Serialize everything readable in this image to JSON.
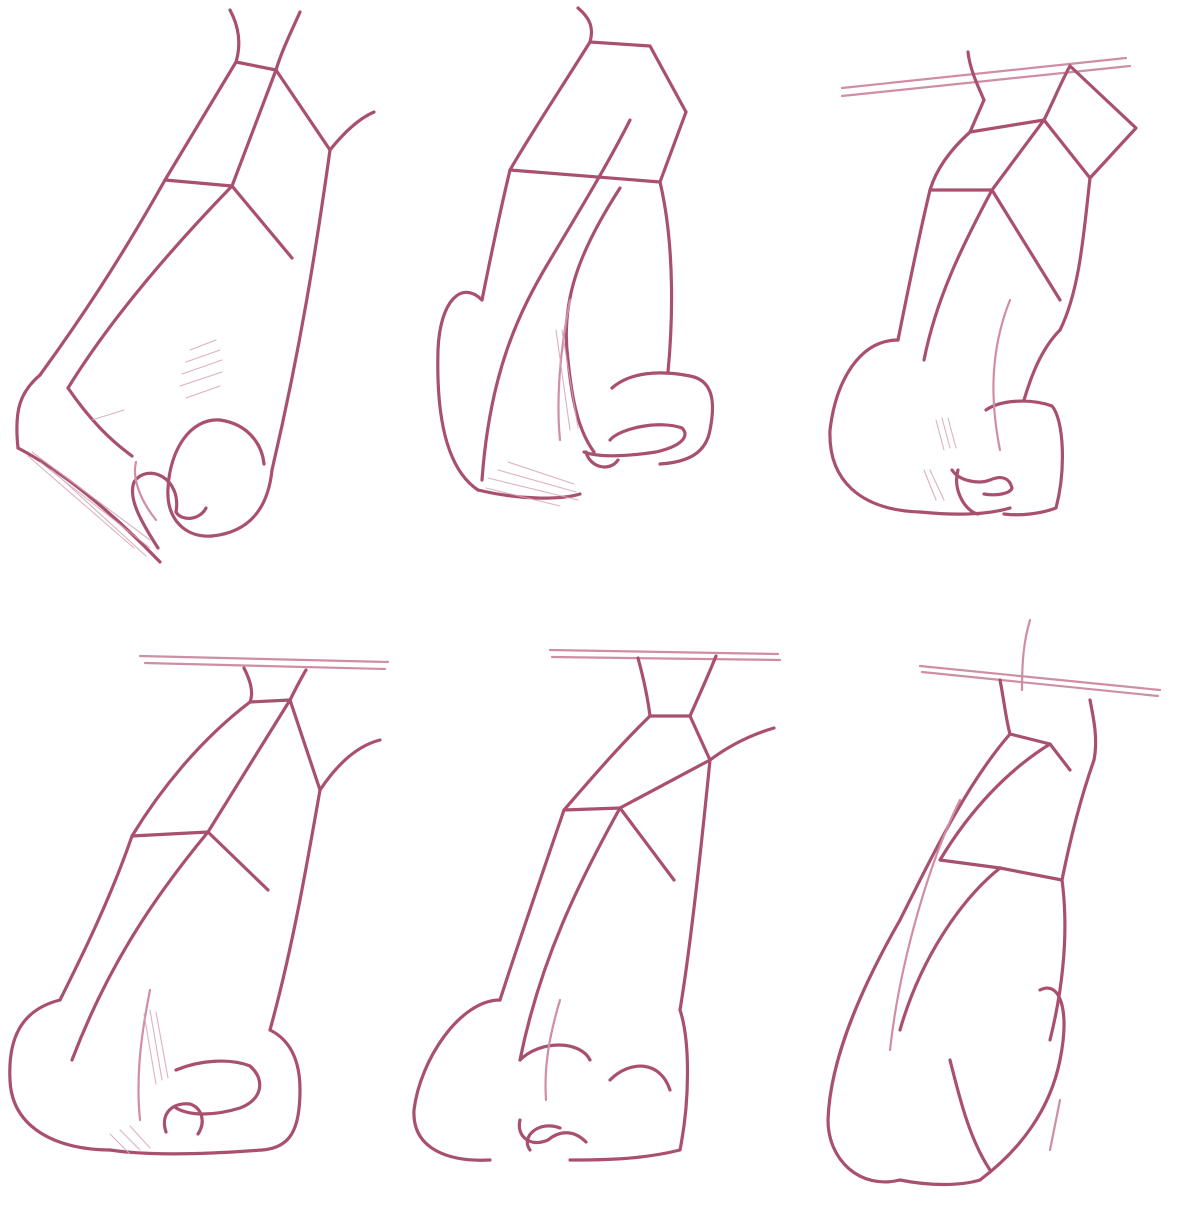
{
  "image": {
    "kind": "pencil sketch sheet",
    "background_color": "#ffffff",
    "line_color": "#a8506e",
    "light_line_color": "#cf8ea6",
    "grid": {
      "rows": 2,
      "columns": 3
    },
    "sketches": [
      {
        "row": 1,
        "column": 1,
        "subject": "nose-three-quarter-down-view"
      },
      {
        "row": 1,
        "column": 2,
        "subject": "nose-three-quarter-view"
      },
      {
        "row": 1,
        "column": 3,
        "subject": "nose-three-quarter-up-view"
      },
      {
        "row": 2,
        "column": 1,
        "subject": "nose-three-quarter-view"
      },
      {
        "row": 2,
        "column": 2,
        "subject": "nose-front-view"
      },
      {
        "row": 2,
        "column": 3,
        "subject": "nose-profile-view"
      }
    ]
  }
}
